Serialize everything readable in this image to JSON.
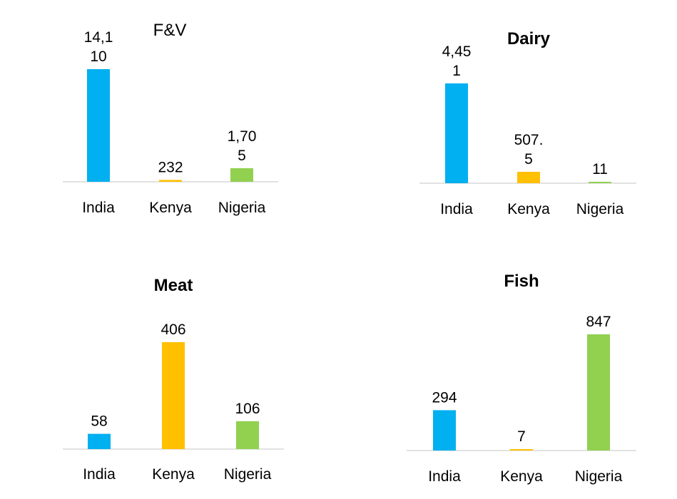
{
  "colors": {
    "India": "#00B0F0",
    "Kenya": "#FFC000",
    "Nigeria": "#92D050",
    "axis": "#D9D9D9"
  },
  "chart_data": [
    {
      "type": "bar",
      "title": "F&V",
      "title_bold": false,
      "categories": [
        "India",
        "Kenya",
        "Nigeria"
      ],
      "values": [
        14110,
        232,
        1705
      ],
      "data_labels": [
        [
          "14,1",
          "10"
        ],
        [
          "232"
        ],
        [
          "1,70",
          "5"
        ]
      ],
      "ylim": [
        0,
        14110
      ]
    },
    {
      "type": "bar",
      "title": "Dairy",
      "title_bold": true,
      "categories": [
        "India",
        "Kenya",
        "Nigeria"
      ],
      "values": [
        4451,
        507.5,
        11
      ],
      "data_labels": [
        [
          "4,45",
          "1"
        ],
        [
          "507.",
          "5"
        ],
        [
          "11"
        ]
      ],
      "ylim": [
        0,
        4451
      ]
    },
    {
      "type": "bar",
      "title": "Meat",
      "title_bold": true,
      "categories": [
        "India",
        "Kenya",
        "Nigeria"
      ],
      "values": [
        58,
        406,
        106
      ],
      "data_labels": [
        [
          "58"
        ],
        [
          "406"
        ],
        [
          "106"
        ]
      ],
      "ylim": [
        0,
        406
      ]
    },
    {
      "type": "bar",
      "title": "Fish",
      "title_bold": true,
      "categories": [
        "India",
        "Kenya",
        "Nigeria"
      ],
      "values": [
        294,
        7,
        847
      ],
      "data_labels": [
        [
          "294"
        ],
        [
          "7"
        ],
        [
          "847"
        ]
      ],
      "ylim": [
        0,
        847
      ]
    }
  ]
}
